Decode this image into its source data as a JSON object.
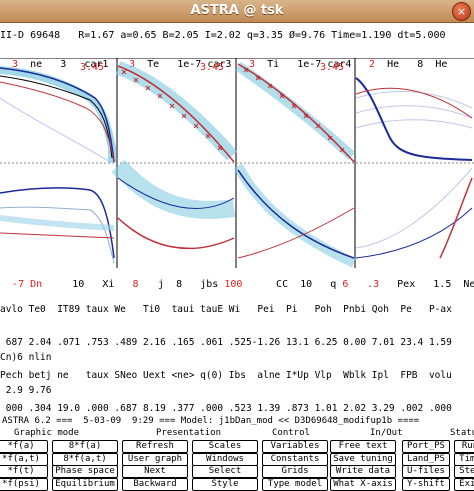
{
  "window": {
    "title": "ASTRA @ tsk",
    "close_glyph": "×"
  },
  "header_line": "II-D 69648   R=1.67 a=0.65 B=2.05 I=2.02 q=3.35 Ø=9.76 Time=1.190 dt=5.000",
  "plot_titles": [
    {
      "num": "3",
      "a": "ne",
      "b": "3",
      "c": "car1"
    },
    {
      "num": "3",
      "a": "Te",
      "b": "1e-7",
      "c": "car3"
    },
    {
      "num": "3",
      "a": "Ti",
      "b": "1e-7",
      "c": "car4"
    },
    {
      "num": "2",
      "a": "He",
      "b": "8",
      "c": "He"
    }
  ],
  "scale_labels": [
    "3.45",
    "3.45",
    "3.45"
  ],
  "bottom_labels": [
    {
      "a": "-7 Dn",
      "b": "10",
      "c": "Xi",
      "num": "8"
    },
    {
      "a": "j",
      "b": "8",
      "c": "jbs",
      "num": "100"
    },
    {
      "a": "CC",
      "b": "10",
      "c": "q",
      "num": "6"
    },
    {
      "a": "Pex",
      "b": "1.5",
      "c": "Neu",
      "num": ".3"
    }
  ],
  "table_lines": [
    "avlo Te0  IT89 taux We   Ti0  taui tauE Wi   Pei  Pi   Poh  Pnbi Qoh  Pe   P-ax",
    " 687 2.04 .071 .753 .489 2.16 .165 .061 .525-1.26 13.1 6.25 0.00 7.01 23.4 1.59",
    "Pech betj ne   taux SNeo Uext <ne> q(0) Ibs  alne I*Up Vlp  Wblk Ipl  FPB  volu",
    " 000 .304 19.0 .000 .687 8.19 .377 .000 .523 1.39 .873 1.01 2.02 3.29 .002 .000"
  ],
  "console_lines": [
    "Cn)6 nlin",
    " 2.9 9.76"
  ],
  "menu": {
    "status": "ASTRA 6.2 ===  5-03-09  9:29 === Model: j1bDan_mod << D3D69648_modifup1b ====",
    "groups": [
      "Graphic mode",
      "Presentation",
      "Control",
      "In/Out",
      "Status"
    ],
    "rows": [
      [
        "*f(a)",
        "8*f(a)",
        "Refresh",
        "Scales",
        "Variables",
        "Free text",
        "Port_PS",
        "Run"
      ],
      [
        "*f(a,t)",
        "8*f(a,t)",
        "User graph",
        "Windows",
        "Constants",
        "Save tuning",
        "Land_PS",
        "Time"
      ],
      [
        "*f(t)",
        "Phase space",
        "Next",
        "Select",
        "Grids",
        "Write data",
        "U-files",
        "Step"
      ],
      [
        "*f(psi)",
        "Equilibrium",
        "Backward",
        "Style",
        "Type model",
        "What X-axis",
        "Y-shift",
        "Exit"
      ]
    ]
  }
}
